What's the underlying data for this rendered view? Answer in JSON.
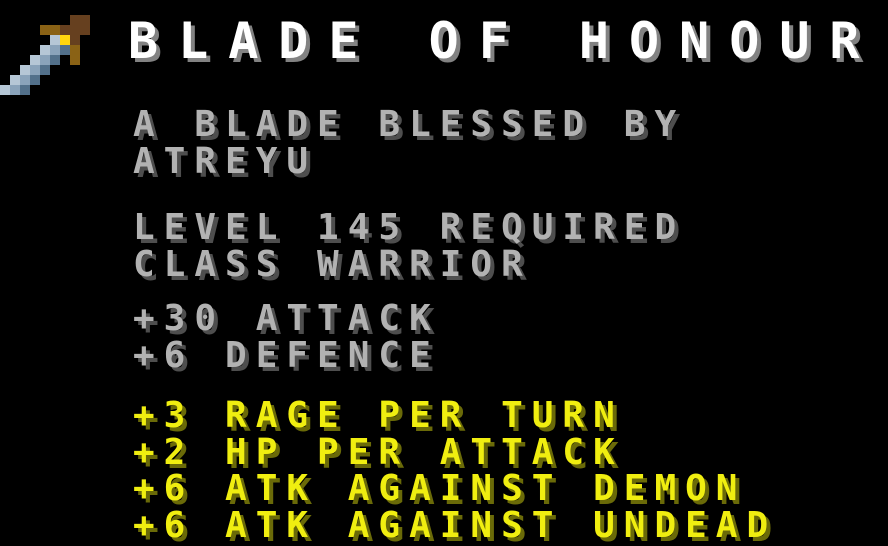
{
  "item": {
    "name": "BLADE OF HONOUR",
    "description_lines": [
      "A BLADE BLESSED BY",
      "ATREYU"
    ],
    "requirement_lines": [
      "LEVEL 145 REQUIRED",
      "CLASS WARRIOR"
    ],
    "base_stat_lines": [
      "+30 ATTACK",
      "+6 DEFENCE"
    ],
    "bonus_stat_lines": [
      "+3 RAGE PER TURN",
      "+2 HP PER ATTACK",
      "+6 ATK AGAINST DEMON",
      "+6 ATK AGAINST UNDEAD"
    ]
  },
  "icon": {
    "name": "pixel-sword-icon"
  },
  "colors": {
    "background": "#000000",
    "title": "#ffffff",
    "title_shadow": "#828282",
    "text": "#b2b2b2",
    "text_shadow": "#4e4e4e",
    "bonus": "#f0ee10",
    "bonus_shadow": "#6a6a08",
    "sword_brown": "#66401f",
    "sword_gold": "#8a6215",
    "sword_gem": "#ffd60f",
    "sword_blade_light": "#b6c7d6",
    "sword_blade_mid": "#8aa3ba",
    "sword_blade_dark": "#52708a"
  }
}
